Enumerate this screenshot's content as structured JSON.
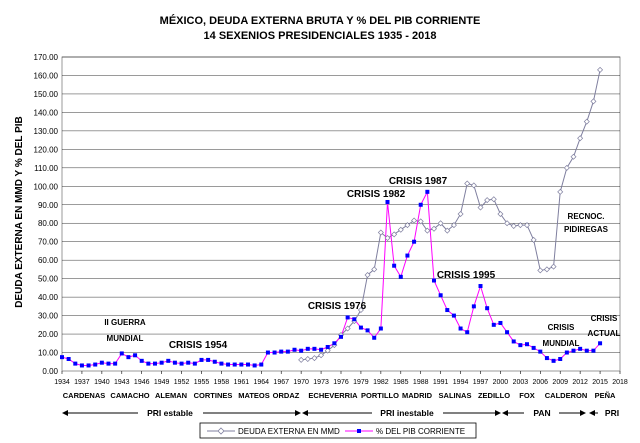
{
  "chart_data": {
    "type": "line",
    "title": "MÉXICO, DEUDA EXTERNA BRUTA Y % DEL PIB CORRIENTE",
    "subtitle": "14 SEXENIOS PRESIDENCIALES  1935 - 2018",
    "ylabel": "DEUDA EXTERNA EN MMD Y % DEL PIB",
    "ylim": [
      0,
      170
    ],
    "yticks": [
      "0.00",
      "10.00",
      "20.00",
      "30.00",
      "40.00",
      "50.00",
      "60.00",
      "70.00",
      "80.00",
      "90.00",
      "100.00",
      "110.00",
      "120.00",
      "130.00",
      "140.00",
      "150.00",
      "160.00",
      "170.00"
    ],
    "xlim": [
      1934,
      2018
    ],
    "xticks": [
      "1934",
      "1937",
      "1940",
      "1943",
      "1946",
      "1949",
      "1952",
      "1955",
      "1958",
      "1961",
      "1964",
      "1967",
      "1970",
      "1973",
      "1976",
      "1979",
      "1982",
      "1985",
      "1988",
      "1991",
      "1994",
      "1997",
      "2000",
      "2003",
      "2006",
      "2009",
      "2012",
      "2015",
      "2018"
    ],
    "grid": true,
    "legend_position": "bottom",
    "series": [
      {
        "name": "DEUDA EXTERNA EN MMD",
        "color": "#7f7f9f",
        "marker": "diamond",
        "x": [
          1970,
          1971,
          1972,
          1973,
          1974,
          1975,
          1976,
          1977,
          1978,
          1979,
          1980,
          1981,
          1982,
          1983,
          1984,
          1985,
          1986,
          1987,
          1988,
          1989,
          1990,
          1991,
          1992,
          1993,
          1994,
          1995,
          1996,
          1997,
          1998,
          1999,
          2000,
          2001,
          2002,
          2003,
          2004,
          2005,
          2006,
          2007,
          2008,
          2009,
          2010,
          2011,
          2012,
          2013,
          2014,
          2015
        ],
        "y": [
          6.0,
          6.5,
          7.0,
          8.5,
          11.0,
          14.0,
          19.5,
          23.0,
          27.0,
          33.0,
          52.0,
          55.0,
          75.0,
          72.0,
          74.0,
          76.5,
          79.0,
          81.5,
          81.0,
          76.0,
          77.0,
          80.0,
          76.0,
          79.0,
          85.0,
          101.5,
          100.5,
          88.5,
          92.5,
          93.0,
          85.0,
          80.0,
          78.5,
          79.0,
          79.0,
          71.0,
          54.5,
          55.0,
          56.5,
          97.0,
          110.0,
          116.0,
          126.0,
          135.0,
          146.0,
          163.0
        ]
      },
      {
        "name": "% DEL PIB CORRIENTE",
        "color": "#ff00ff",
        "marker_color": "#0000ff",
        "marker": "square",
        "x": [
          1934,
          1935,
          1936,
          1937,
          1938,
          1939,
          1940,
          1941,
          1942,
          1943,
          1944,
          1945,
          1946,
          1947,
          1948,
          1949,
          1950,
          1951,
          1952,
          1953,
          1954,
          1955,
          1956,
          1957,
          1958,
          1959,
          1960,
          1961,
          1962,
          1963,
          1964,
          1965,
          1966,
          1967,
          1968,
          1969,
          1970,
          1971,
          1972,
          1973,
          1974,
          1975,
          1976,
          1977,
          1978,
          1979,
          1980,
          1981,
          1982,
          1983,
          1984,
          1985,
          1986,
          1987,
          1988,
          1989,
          1990,
          1991,
          1992,
          1993,
          1994,
          1995,
          1996,
          1997,
          1998,
          1999,
          2000,
          2001,
          2002,
          2003,
          2004,
          2005,
          2006,
          2007,
          2008,
          2009,
          2010,
          2011,
          2012,
          2013,
          2014,
          2015
        ],
        "y": [
          7.5,
          6.5,
          4.0,
          3.0,
          3.0,
          3.5,
          4.5,
          4.0,
          4.0,
          9.5,
          7.5,
          8.5,
          5.5,
          4.0,
          4.0,
          4.5,
          5.5,
          4.5,
          4.0,
          4.5,
          4.0,
          6.0,
          6.0,
          5.0,
          4.0,
          3.5,
          3.5,
          3.5,
          3.5,
          3.0,
          3.5,
          10.0,
          10.0,
          10.5,
          10.5,
          11.5,
          11.0,
          12.0,
          12.0,
          11.5,
          13.0,
          15.0,
          18.5,
          29.0,
          28.0,
          23.5,
          22.0,
          18.0,
          23.0,
          91.5,
          57.0,
          51.0,
          62.5,
          70.0,
          90.0,
          97.0,
          49.0,
          41.0,
          33.0,
          30.0,
          23.0,
          21.0,
          35.0,
          46.0,
          34.0,
          25.0,
          26.0,
          21.0,
          16.0,
          14.0,
          14.5,
          12.5,
          10.5,
          7.0,
          5.5,
          6.5,
          10.0,
          11.0,
          12.0,
          11.0,
          11.0,
          15.0
        ]
      }
    ],
    "presidents": [
      "CARDENAS",
      "CAMACHO",
      "ALEMAN",
      "CORTINES",
      "MATEOS",
      "ORDAZ",
      "ECHEVERRIA",
      "PORTILLO",
      "MADRID",
      "SALINAS",
      "ZEDILLO",
      "FOX",
      "CALDERON",
      "PEÑA"
    ],
    "eras": [
      "PRI estable",
      "PRI inestable",
      "PAN",
      "PRI"
    ],
    "annotations": [
      "II GUERRA",
      "MUNDIAL",
      "CRISIS 1954",
      "CRISIS 1976",
      "CRISIS 1982",
      "CRISIS 1987",
      "CRISIS 1995",
      "CRISIS",
      "MUNDIAL",
      "CRISIS",
      "ACTUAL",
      "RECNOC.",
      "PIDIREGAS"
    ]
  }
}
